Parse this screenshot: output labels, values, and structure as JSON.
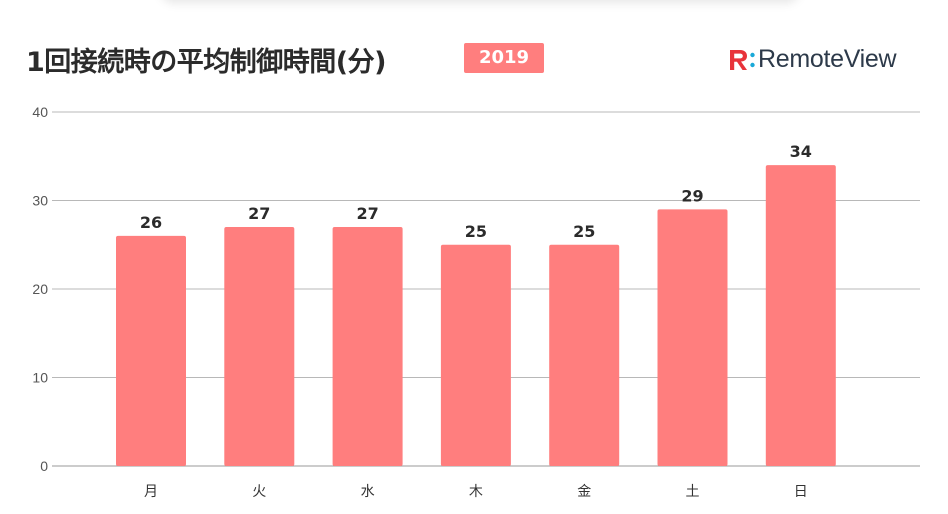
{
  "title": "1回接続時の平均制御時間(分)",
  "badge": "2019",
  "brand": {
    "name": "RemoteView",
    "logo_icon": "remoteview-logo-icon",
    "logo_color": "#e8333a",
    "dot_color": "#1aa9d8"
  },
  "chart_data": {
    "type": "bar",
    "categories": [
      "月",
      "火",
      "水",
      "木",
      "金",
      "土",
      "日"
    ],
    "values": [
      26,
      27,
      27,
      25,
      25,
      29,
      34
    ],
    "data_labels": [
      "26",
      "27",
      "27",
      "25",
      "25",
      "29",
      "34"
    ],
    "yticks": [
      "0",
      "10",
      "20",
      "30",
      "40"
    ],
    "ylim": [
      0,
      40
    ],
    "grid": true,
    "bar_color": "#ff7e7e",
    "title": "1回接続時の平均制御時間(分)"
  }
}
